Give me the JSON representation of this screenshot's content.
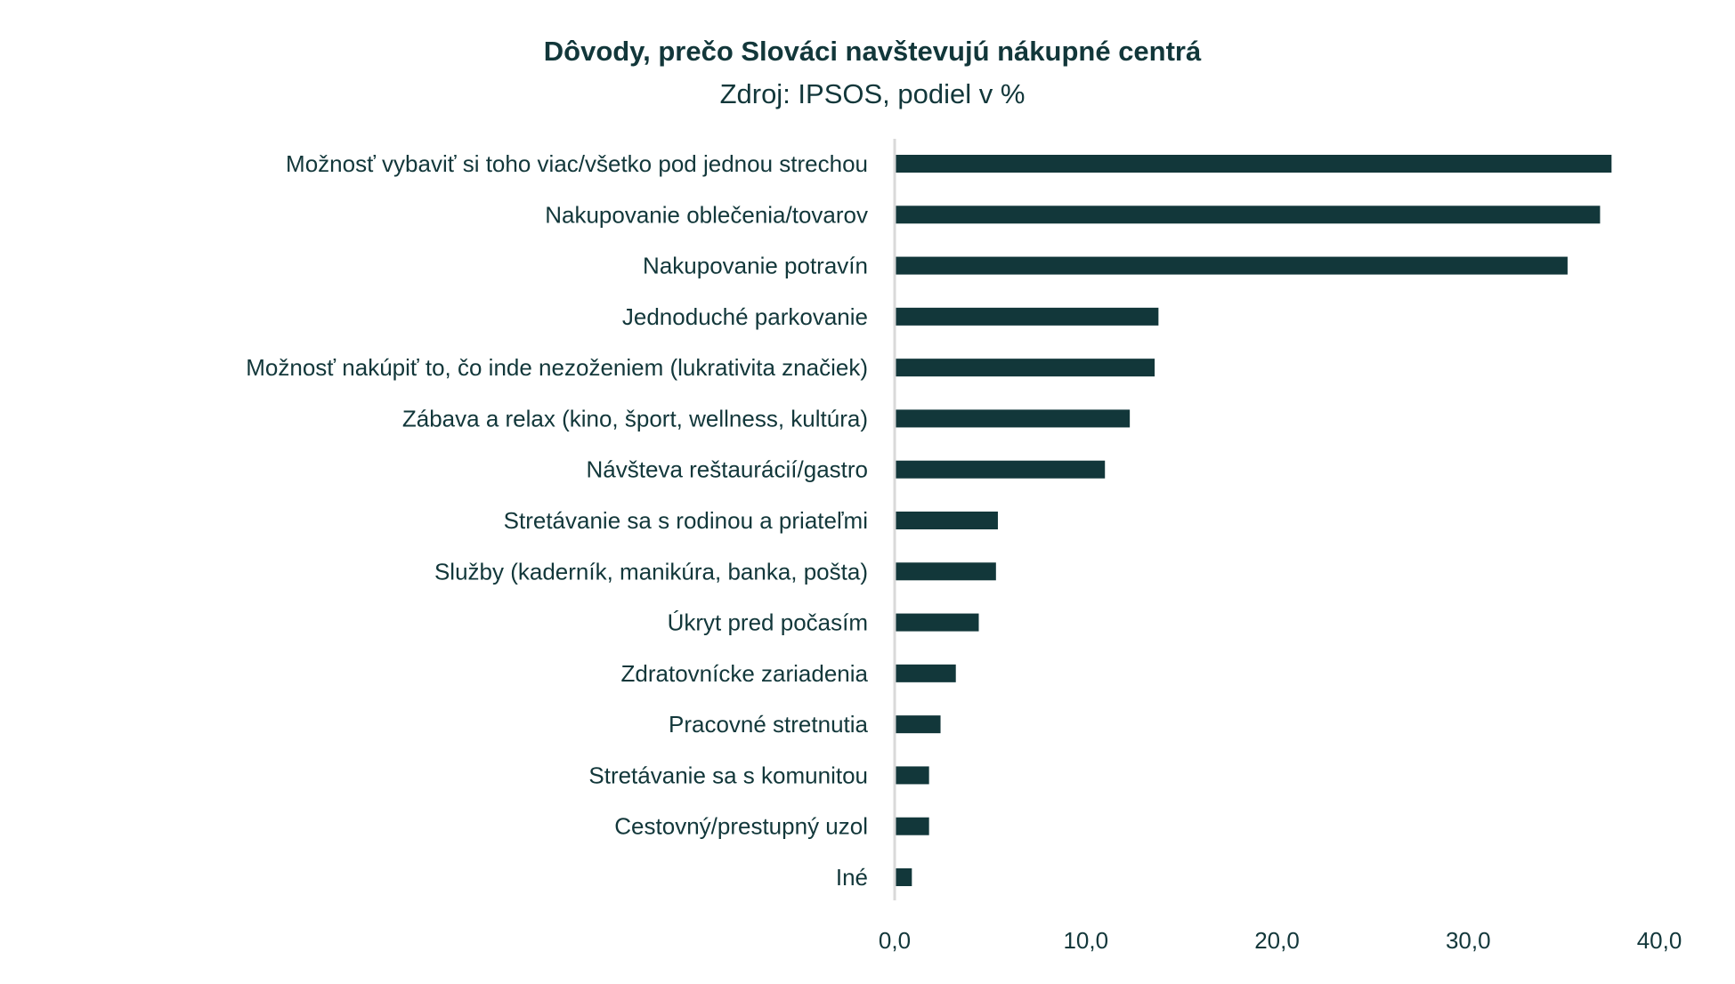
{
  "chart_data": {
    "type": "bar",
    "orientation": "horizontal",
    "title": "Dôvody, prečo Slováci navštevujú nákupné centrá",
    "subtitle": "Zdroj: IPSOS, podiel v %",
    "categories": [
      "Možnosť vybaviť si toho viac/všetko pod jednou strechou",
      "Nakupovanie oblečenia/tovarov",
      "Nakupovanie potravín",
      "Jednoduché parkovanie",
      "Možnosť nakúpiť to, čo inde nezoženiem (lukrativita značiek)",
      "Zábava a relax (kino, šport, wellness, kultúra)",
      "Návšteva reštaurácií/gastro",
      "Stretávanie sa s rodinou a priateľmi",
      "Služby (kaderník, manikúra, banka, pošta)",
      "Úkryt pred počasím",
      "Zdratovnícke zariadenia",
      "Pracovné stretnutia",
      "Stretávanie sa s komunitou",
      "Cestovný/prestupný uzol",
      "Iné"
    ],
    "values": [
      37.5,
      36.9,
      35.2,
      13.8,
      13.6,
      12.3,
      11.0,
      5.4,
      5.3,
      4.4,
      3.2,
      2.4,
      1.8,
      1.8,
      0.9
    ],
    "xlim": [
      0,
      40
    ],
    "xticks": [
      "0,0",
      "10,0",
      "20,0",
      "30,0",
      "40,0"
    ],
    "xlabel": "",
    "ylabel": "",
    "grid": false,
    "legend": "none",
    "bar_color": "#12373a",
    "axis_color": "#d9d9d9"
  }
}
